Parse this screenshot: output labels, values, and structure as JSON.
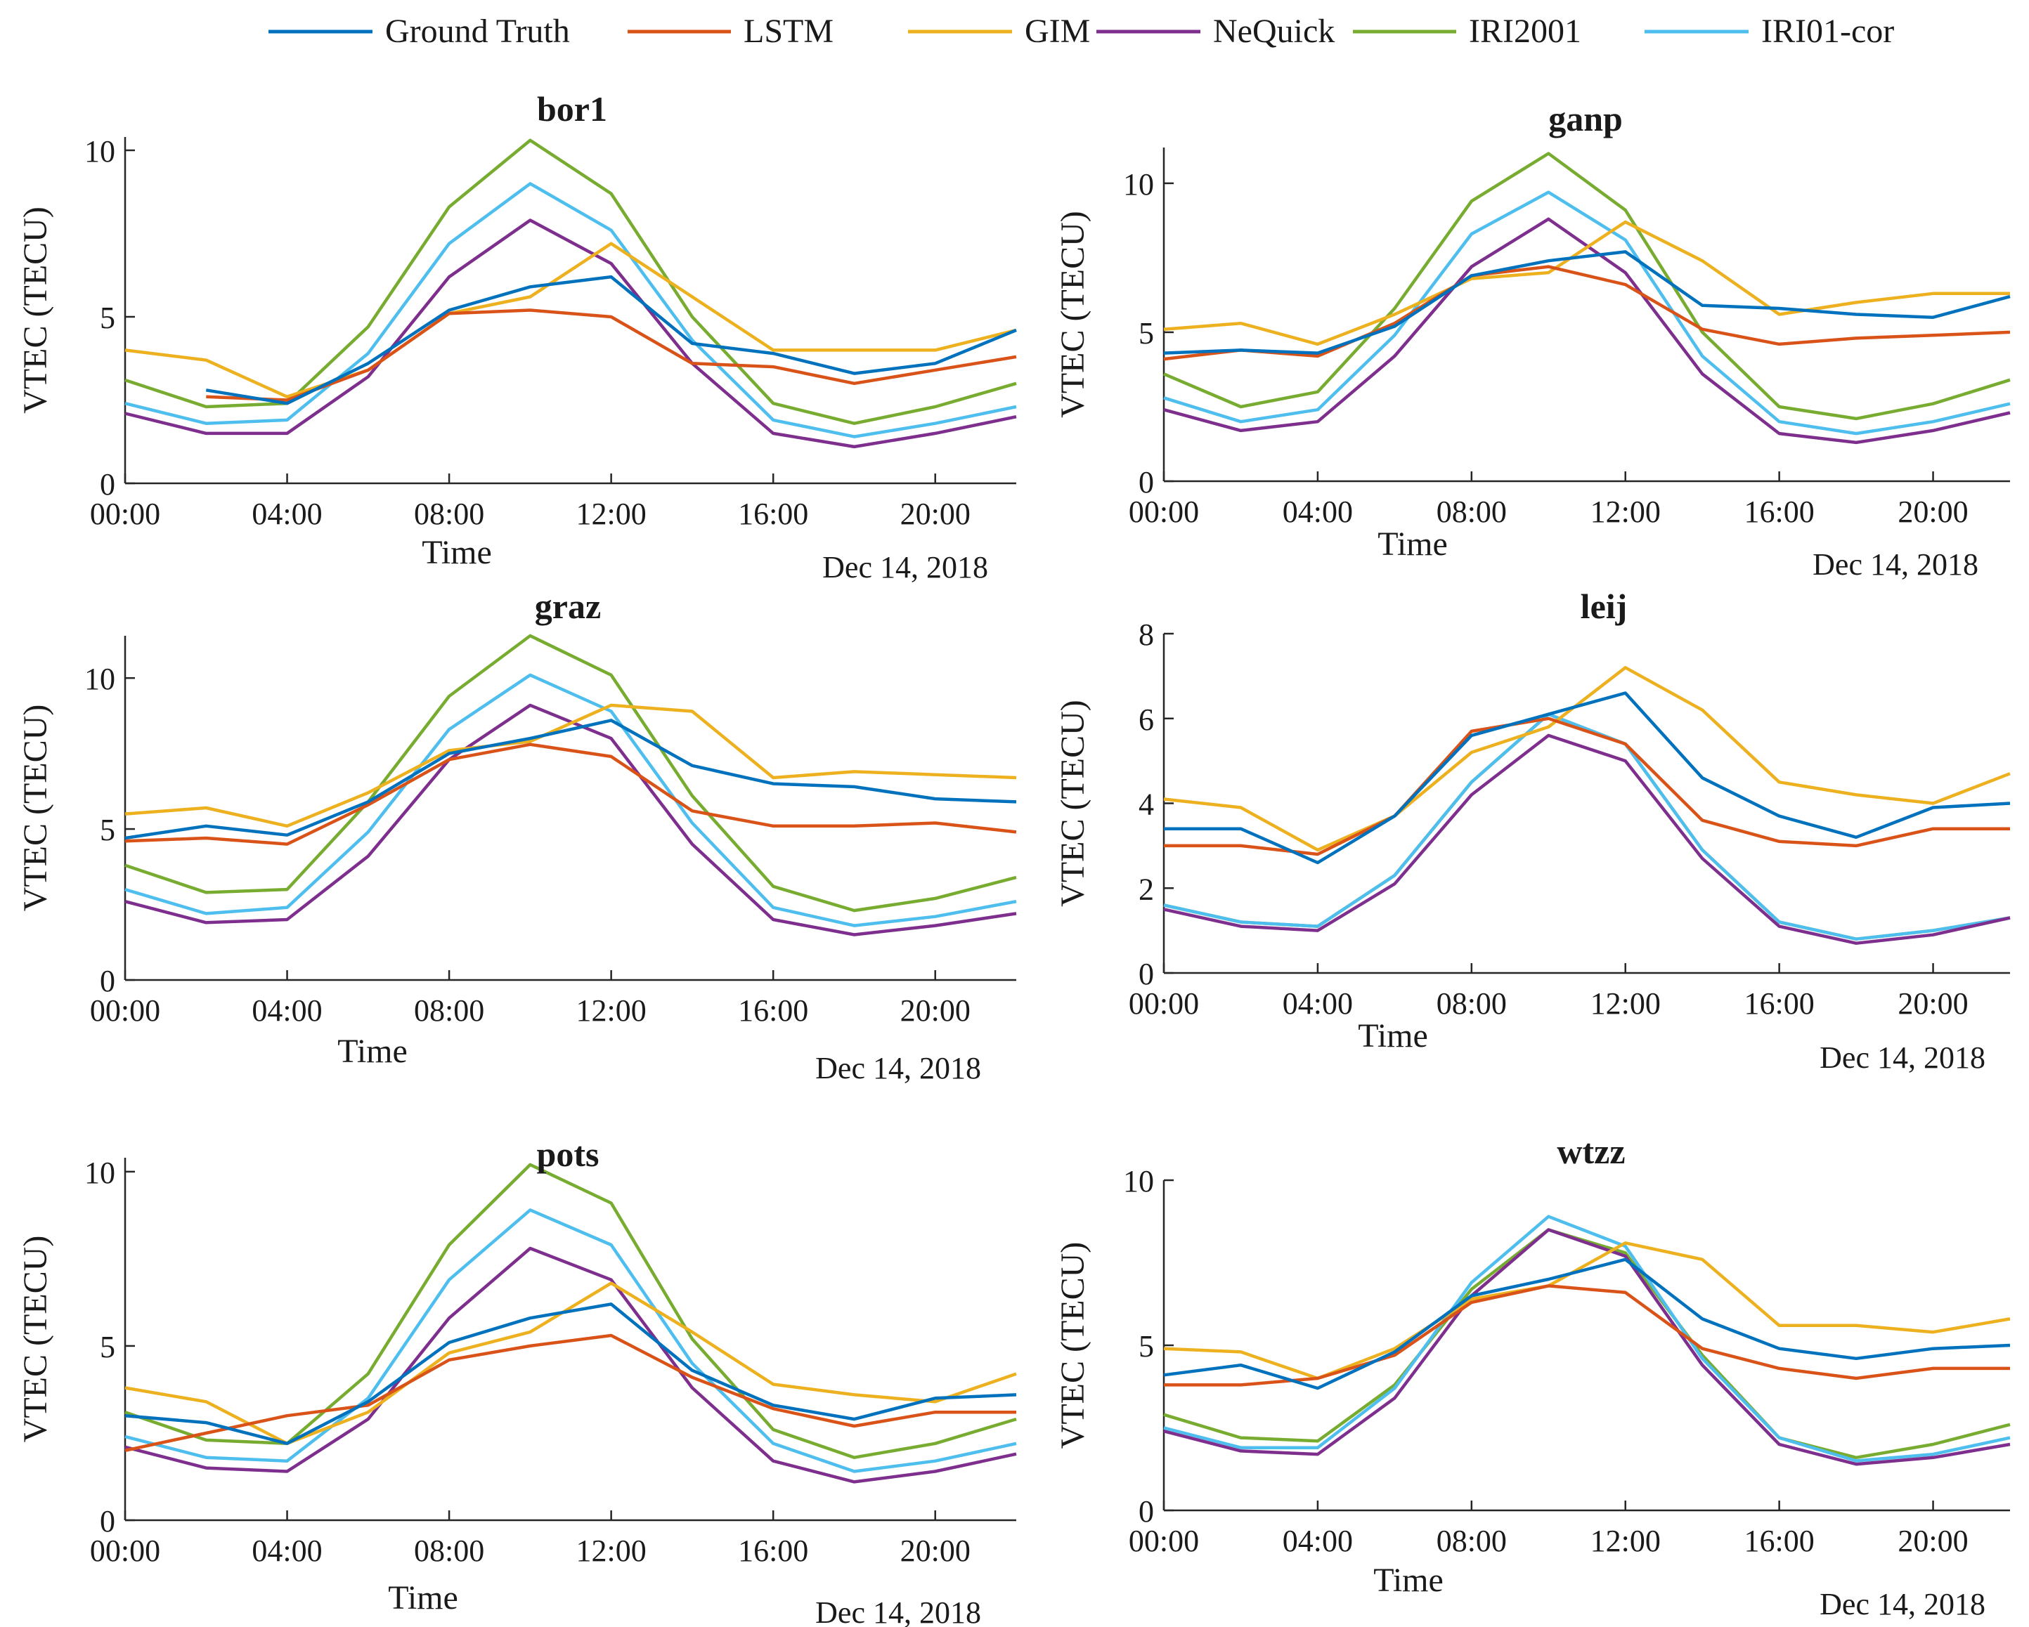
{
  "legend": {
    "placement": "top-center",
    "entries": [
      {
        "name": "Ground Truth",
        "color": "#0072BD"
      },
      {
        "name": "LSTM",
        "color": "#D95319"
      },
      {
        "name": "GIM",
        "color": "#EDB120"
      },
      {
        "name": "NeQuick",
        "color": "#7E2F8E"
      },
      {
        "name": "IRI2001",
        "color": "#77AC30"
      },
      {
        "name": "IRI01-cor",
        "color": "#4DBEEE"
      }
    ]
  },
  "chart_data": [
    {
      "type": "line",
      "title": "bor1",
      "xlabel": "Time",
      "ylabel": "VTEC (TECU)",
      "date_label": "Dec 14, 2018",
      "x": [
        0,
        2,
        4,
        6,
        8,
        10,
        12,
        14,
        16,
        18,
        20,
        22
      ],
      "xticks": [
        0,
        4,
        8,
        12,
        16,
        20
      ],
      "xtick_labels": [
        "00:00",
        "04:00",
        "08:00",
        "12:00",
        "16:00",
        "20:00"
      ],
      "xlim": [
        0,
        22
      ],
      "ylim": [
        0,
        10.4
      ],
      "yticks": [
        0,
        5,
        10
      ],
      "series": [
        {
          "name": "Ground Truth",
          "values": [
            null,
            2.8,
            2.4,
            3.6,
            5.2,
            5.9,
            6.2,
            4.2,
            3.9,
            3.3,
            3.6,
            4.6
          ]
        },
        {
          "name": "LSTM",
          "values": [
            null,
            2.6,
            2.5,
            3.4,
            5.1,
            5.2,
            5.0,
            3.6,
            3.5,
            3.0,
            3.4,
            3.8
          ]
        },
        {
          "name": "GIM",
          "values": [
            4.0,
            3.7,
            2.6,
            3.4,
            5.1,
            5.6,
            7.2,
            5.6,
            4.0,
            4.0,
            4.0,
            4.6
          ]
        },
        {
          "name": "NeQuick",
          "values": [
            2.1,
            1.5,
            1.5,
            3.2,
            6.2,
            7.9,
            6.6,
            3.6,
            1.5,
            1.1,
            1.5,
            2.0
          ]
        },
        {
          "name": "IRI2001",
          "values": [
            3.1,
            2.3,
            2.4,
            4.7,
            8.3,
            10.3,
            8.7,
            5.0,
            2.4,
            1.8,
            2.3,
            3.0
          ]
        },
        {
          "name": "IRI01-cor",
          "values": [
            2.4,
            1.8,
            1.9,
            3.9,
            7.2,
            9.0,
            7.6,
            4.3,
            1.9,
            1.4,
            1.8,
            2.3
          ]
        }
      ]
    },
    {
      "type": "line",
      "title": "ganp",
      "xlabel": "Time",
      "ylabel": "VTEC (TECU)",
      "date_label": "Dec 14, 2018",
      "x": [
        0,
        2,
        4,
        6,
        8,
        10,
        12,
        14,
        16,
        18,
        20,
        22
      ],
      "xticks": [
        0,
        4,
        8,
        12,
        16,
        20
      ],
      "xtick_labels": [
        "00:00",
        "04:00",
        "08:00",
        "12:00",
        "16:00",
        "20:00"
      ],
      "xlim": [
        0,
        22
      ],
      "ylim": [
        0,
        11.2
      ],
      "yticks": [
        0,
        5,
        10
      ],
      "series": [
        {
          "name": "Ground Truth",
          "values": [
            4.3,
            4.4,
            4.3,
            5.2,
            6.9,
            7.4,
            7.7,
            5.9,
            5.8,
            5.6,
            5.5,
            6.2
          ]
        },
        {
          "name": "LSTM",
          "values": [
            4.1,
            4.4,
            4.2,
            5.3,
            6.9,
            7.2,
            6.6,
            5.1,
            4.6,
            4.8,
            4.9,
            5.0
          ]
        },
        {
          "name": "GIM",
          "values": [
            5.1,
            5.3,
            4.6,
            5.6,
            6.8,
            7.0,
            8.7,
            7.4,
            5.6,
            6.0,
            6.3,
            6.3
          ]
        },
        {
          "name": "NeQuick",
          "values": [
            2.4,
            1.7,
            2.0,
            4.2,
            7.2,
            8.8,
            7.0,
            3.6,
            1.6,
            1.3,
            1.7,
            2.3
          ]
        },
        {
          "name": "IRI2001",
          "values": [
            3.6,
            2.5,
            3.0,
            5.8,
            9.4,
            11.0,
            9.1,
            5.0,
            2.5,
            2.1,
            2.6,
            3.4
          ]
        },
        {
          "name": "IRI01-cor",
          "values": [
            2.8,
            2.0,
            2.4,
            4.9,
            8.3,
            9.7,
            8.1,
            4.2,
            2.0,
            1.6,
            2.0,
            2.6
          ]
        }
      ]
    },
    {
      "type": "line",
      "title": "graz",
      "xlabel": "Time",
      "ylabel": "VTEC (TECU)",
      "date_label": "Dec 14, 2018",
      "x": [
        0,
        2,
        4,
        6,
        8,
        10,
        12,
        14,
        16,
        18,
        20,
        22
      ],
      "xticks": [
        0,
        4,
        8,
        12,
        16,
        20
      ],
      "xtick_labels": [
        "00:00",
        "04:00",
        "08:00",
        "12:00",
        "16:00",
        "20:00"
      ],
      "xlim": [
        0,
        22
      ],
      "ylim": [
        0,
        11.4
      ],
      "yticks": [
        0,
        5,
        10
      ],
      "series": [
        {
          "name": "Ground Truth",
          "values": [
            4.7,
            5.1,
            4.8,
            5.9,
            7.5,
            8.0,
            8.6,
            7.1,
            6.5,
            6.4,
            6.0,
            5.9
          ]
        },
        {
          "name": "LSTM",
          "values": [
            4.6,
            4.7,
            4.5,
            5.8,
            7.3,
            7.8,
            7.4,
            5.6,
            5.1,
            5.1,
            5.2,
            4.9
          ]
        },
        {
          "name": "GIM",
          "values": [
            5.5,
            5.7,
            5.1,
            6.2,
            7.6,
            7.9,
            9.1,
            8.9,
            6.7,
            6.9,
            6.8,
            6.7
          ]
        },
        {
          "name": "NeQuick",
          "values": [
            2.6,
            1.9,
            2.0,
            4.1,
            7.3,
            9.1,
            8.0,
            4.5,
            2.0,
            1.5,
            1.8,
            2.2
          ]
        },
        {
          "name": "IRI2001",
          "values": [
            3.8,
            2.9,
            3.0,
            5.9,
            9.4,
            11.4,
            10.1,
            6.1,
            3.1,
            2.3,
            2.7,
            3.4
          ]
        },
        {
          "name": "IRI01-cor",
          "values": [
            3.0,
            2.2,
            2.4,
            4.9,
            8.3,
            10.1,
            8.9,
            5.2,
            2.4,
            1.8,
            2.1,
            2.6
          ]
        }
      ]
    },
    {
      "type": "line",
      "title": "leij",
      "xlabel": "Time",
      "ylabel": "VTEC (TECU)",
      "date_label": "Dec 14, 2018",
      "x": [
        0,
        2,
        4,
        6,
        8,
        10,
        12,
        14,
        16,
        18,
        20,
        22
      ],
      "xticks": [
        0,
        4,
        8,
        12,
        16,
        20
      ],
      "xtick_labels": [
        "00:00",
        "04:00",
        "08:00",
        "12:00",
        "16:00",
        "20:00"
      ],
      "xlim": [
        0,
        22
      ],
      "ylim": [
        0,
        8
      ],
      "yticks": [
        0,
        2,
        4,
        6,
        8
      ],
      "series": [
        {
          "name": "Ground Truth",
          "values": [
            3.4,
            3.4,
            2.6,
            3.7,
            5.6,
            6.1,
            6.6,
            4.6,
            3.7,
            3.2,
            3.9,
            4.0
          ]
        },
        {
          "name": "LSTM",
          "values": [
            3.0,
            3.0,
            2.8,
            3.7,
            5.7,
            6.0,
            5.4,
            3.6,
            3.1,
            3.0,
            3.4,
            3.4
          ]
        },
        {
          "name": "GIM",
          "values": [
            4.1,
            3.9,
            2.9,
            3.7,
            5.2,
            5.8,
            7.2,
            6.2,
            4.5,
            4.2,
            4.0,
            4.7
          ]
        },
        {
          "name": "NeQuick",
          "values": [
            1.5,
            1.1,
            1.0,
            2.1,
            4.2,
            5.6,
            5.0,
            2.7,
            1.1,
            0.7,
            0.9,
            1.3
          ]
        },
        {
          "name": "IRI2001",
          "values": [
            1.6,
            1.2,
            1.1,
            2.3,
            4.5,
            6.1,
            5.4,
            2.9,
            1.2,
            0.8,
            1.0,
            1.3
          ]
        },
        {
          "name": "IRI01-cor",
          "values": [
            1.6,
            1.2,
            1.1,
            2.3,
            4.5,
            6.1,
            5.4,
            2.9,
            1.2,
            0.8,
            1.0,
            1.3
          ]
        }
      ]
    },
    {
      "type": "line",
      "title": "pots",
      "xlabel": "Time",
      "ylabel": "VTEC (TECU)",
      "date_label": "Dec 14, 2018",
      "x": [
        0,
        2,
        4,
        6,
        8,
        10,
        12,
        14,
        16,
        18,
        20,
        22
      ],
      "xticks": [
        0,
        4,
        8,
        12,
        16,
        20
      ],
      "xtick_labels": [
        "00:00",
        "04:00",
        "08:00",
        "12:00",
        "16:00",
        "20:00"
      ],
      "xlim": [
        0,
        22
      ],
      "ylim": [
        0,
        10.4
      ],
      "yticks": [
        0,
        5,
        10
      ],
      "series": [
        {
          "name": "Ground Truth",
          "values": [
            3.0,
            2.8,
            2.2,
            3.4,
            5.1,
            5.8,
            6.2,
            4.3,
            3.3,
            2.9,
            3.5,
            3.6
          ]
        },
        {
          "name": "LSTM",
          "values": [
            2.0,
            2.5,
            3.0,
            3.3,
            4.6,
            5.0,
            5.3,
            4.1,
            3.2,
            2.7,
            3.1,
            3.1
          ]
        },
        {
          "name": "GIM",
          "values": [
            3.8,
            3.4,
            2.2,
            3.1,
            4.8,
            5.4,
            6.8,
            5.4,
            3.9,
            3.6,
            3.4,
            4.2
          ]
        },
        {
          "name": "NeQuick",
          "values": [
            2.1,
            1.5,
            1.4,
            2.9,
            5.8,
            7.8,
            6.9,
            3.8,
            1.7,
            1.1,
            1.4,
            1.9
          ]
        },
        {
          "name": "IRI2001",
          "values": [
            3.1,
            2.3,
            2.2,
            4.2,
            7.9,
            10.2,
            9.1,
            5.2,
            2.6,
            1.8,
            2.2,
            2.9
          ]
        },
        {
          "name": "IRI01-cor",
          "values": [
            2.4,
            1.8,
            1.7,
            3.5,
            6.9,
            8.9,
            7.9,
            4.5,
            2.2,
            1.4,
            1.7,
            2.2
          ]
        }
      ]
    },
    {
      "type": "line",
      "title": "wtzz",
      "xlabel": "Time",
      "ylabel": "VTEC (TECU)",
      "date_label": "Dec 14, 2018",
      "x": [
        0,
        2,
        4,
        6,
        8,
        10,
        12,
        14,
        16,
        18,
        20,
        22
      ],
      "xticks": [
        0,
        4,
        8,
        12,
        16,
        20
      ],
      "xtick_labels": [
        "00:00",
        "04:00",
        "08:00",
        "12:00",
        "16:00",
        "20:00"
      ],
      "xlim": [
        0,
        22
      ],
      "ylim": [
        0,
        10
      ],
      "yticks": [
        0,
        5,
        10
      ],
      "series": [
        {
          "name": "Ground Truth",
          "values": [
            4.1,
            4.4,
            3.7,
            4.8,
            6.5,
            7.0,
            7.6,
            5.8,
            4.9,
            4.6,
            4.9,
            5.0
          ]
        },
        {
          "name": "LSTM",
          "values": [
            3.8,
            3.8,
            4.0,
            4.7,
            6.3,
            6.8,
            6.6,
            4.9,
            4.3,
            4.0,
            4.3,
            4.3
          ]
        },
        {
          "name": "GIM",
          "values": [
            4.9,
            4.8,
            4.0,
            4.9,
            6.4,
            6.8,
            8.1,
            7.6,
            5.6,
            5.6,
            5.4,
            5.8
          ]
        },
        {
          "name": "NeQuick",
          "values": [
            2.4,
            1.8,
            1.7,
            3.4,
            6.5,
            8.5,
            7.7,
            4.4,
            2.0,
            1.4,
            1.6,
            2.0
          ]
        },
        {
          "name": "IRI2001",
          "values": [
            2.9,
            2.2,
            2.1,
            3.8,
            6.7,
            8.5,
            7.8,
            4.7,
            2.2,
            1.6,
            2.0,
            2.6
          ]
        },
        {
          "name": "IRI01-cor",
          "values": [
            2.5,
            1.9,
            1.9,
            3.7,
            6.9,
            8.9,
            8.0,
            4.6,
            2.2,
            1.5,
            1.7,
            2.2
          ]
        }
      ]
    }
  ]
}
